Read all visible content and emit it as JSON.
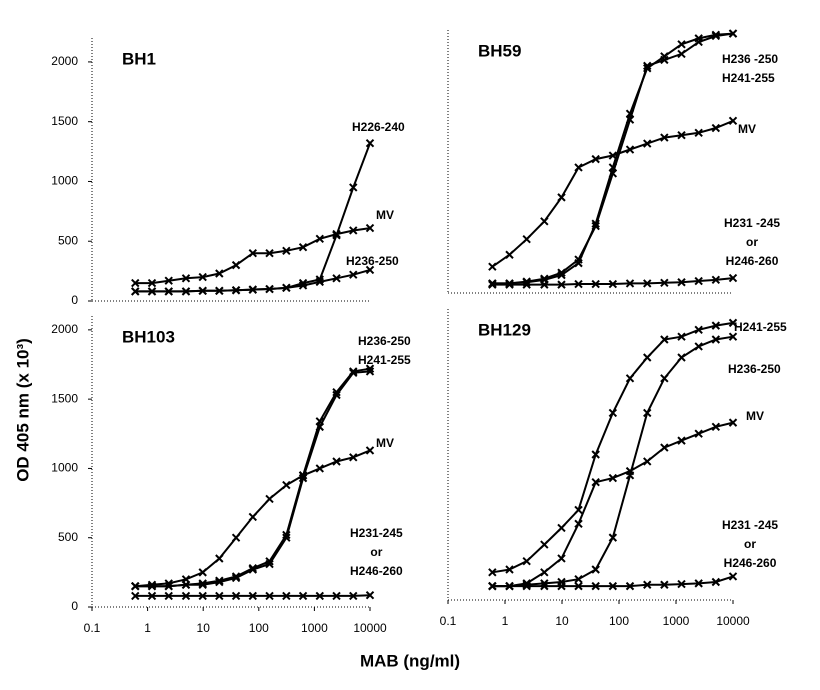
{
  "y_label": "OD 405 nm (x 10³)",
  "x_label": "MAB (ng/ml)",
  "chart_data": [
    {
      "type": "line",
      "title": "BH1",
      "log_x": true,
      "color": "#000000",
      "x": [
        0.6,
        1.2,
        2.4,
        4.9,
        9.8,
        19.5,
        39,
        78,
        156,
        313,
        625,
        1250,
        2500,
        5000,
        10000
      ],
      "xlim": [
        0.1,
        10000
      ],
      "ylim": [
        0,
        2200
      ],
      "yticks": [
        0,
        500,
        1000,
        1500,
        2000
      ],
      "series": [
        {
          "name": "H226-240",
          "color": "#000000",
          "values": [
            80,
            80,
            80,
            80,
            85,
            85,
            90,
            95,
            100,
            110,
            150,
            180,
            550,
            950,
            1320
          ]
        },
        {
          "name": "MV",
          "color": "#000000",
          "values": [
            150,
            150,
            170,
            190,
            200,
            230,
            300,
            400,
            400,
            420,
            450,
            520,
            560,
            590,
            610
          ]
        },
        {
          "name": "H236-250",
          "color": "#000000",
          "values": [
            80,
            80,
            80,
            80,
            85,
            85,
            90,
            95,
            100,
            110,
            130,
            160,
            190,
            220,
            260
          ]
        }
      ]
    },
    {
      "type": "line",
      "title": "BH59",
      "log_x": true,
      "color": "#000000",
      "x": [
        0.6,
        1.2,
        2.4,
        4.9,
        9.8,
        19.5,
        39,
        78,
        156,
        313,
        625,
        1250,
        2500,
        5000,
        10000
      ],
      "xlim": [
        0.1,
        10000
      ],
      "ylim": [
        0,
        2200
      ],
      "series": [
        {
          "name": "H236 -250",
          "color": "#000000",
          "values": [
            80,
            80,
            90,
            110,
            150,
            250,
            580,
            1050,
            1500,
            1880,
            1980,
            2080,
            2130,
            2160,
            2170
          ]
        },
        {
          "name": "H241-255",
          "color": "#000000",
          "values": [
            80,
            80,
            95,
            120,
            170,
            280,
            560,
            1000,
            1450,
            1900,
            1950,
            2000,
            2100,
            2150,
            2170
          ]
        },
        {
          "name": "MV",
          "color": "#000000",
          "values": [
            220,
            320,
            450,
            600,
            800,
            1050,
            1120,
            1150,
            1200,
            1250,
            1300,
            1320,
            1340,
            1380,
            1440
          ]
        },
        {
          "name": "H231 -245\nor\nH246-260",
          "color": "#000000",
          "values": [
            70,
            70,
            70,
            70,
            70,
            75,
            75,
            75,
            80,
            80,
            85,
            90,
            100,
            110,
            125
          ]
        }
      ]
    },
    {
      "type": "line",
      "title": "BH103",
      "log_x": true,
      "color": "#000000",
      "x": [
        0.6,
        1.2,
        2.4,
        4.9,
        9.8,
        19.5,
        39,
        78,
        156,
        313,
        625,
        1250,
        2500,
        5000,
        10000
      ],
      "xlim": [
        0.1,
        10000
      ],
      "ylim": [
        0,
        2100
      ],
      "yticks": [
        0,
        500,
        1000,
        1500,
        2000
      ],
      "xticks": [
        0.1,
        1,
        10,
        100,
        1000,
        10000
      ],
      "series": [
        {
          "name": "H236-250",
          "color": "#000000",
          "values": [
            150,
            150,
            150,
            160,
            170,
            190,
            220,
            280,
            330,
            520,
            950,
            1340,
            1550,
            1700,
            1720
          ]
        },
        {
          "name": "H241-255",
          "color": "#000000",
          "values": [
            150,
            150,
            150,
            160,
            160,
            180,
            210,
            270,
            310,
            500,
            930,
            1300,
            1530,
            1690,
            1700
          ]
        },
        {
          "name": "MV",
          "color": "#000000",
          "values": [
            150,
            160,
            170,
            200,
            250,
            350,
            500,
            650,
            780,
            880,
            950,
            1000,
            1050,
            1080,
            1130
          ]
        },
        {
          "name": "H231-245\nor\nH246-260",
          "color": "#000000",
          "values": [
            80,
            80,
            80,
            80,
            80,
            80,
            80,
            80,
            80,
            80,
            80,
            80,
            80,
            80,
            85
          ]
        }
      ]
    },
    {
      "type": "line",
      "title": "BH129",
      "log_x": true,
      "color": "#000000",
      "x": [
        0.6,
        1.2,
        2.4,
        4.9,
        9.8,
        19.5,
        39,
        78,
        156,
        313,
        625,
        1250,
        2500,
        5000,
        10000
      ],
      "xlim": [
        0.1,
        10000
      ],
      "ylim": [
        0,
        2100
      ],
      "xticks": [
        0.1,
        1,
        10,
        100,
        1000,
        10000
      ],
      "series": [
        {
          "name": "H241-255",
          "color": "#000000",
          "values": [
            200,
            220,
            280,
            400,
            520,
            650,
            1050,
            1350,
            1600,
            1750,
            1880,
            1900,
            1950,
            1980,
            2000
          ]
        },
        {
          "name": "H236-250",
          "color": "#000000",
          "values": [
            100,
            100,
            110,
            120,
            130,
            150,
            220,
            450,
            900,
            1350,
            1600,
            1750,
            1830,
            1880,
            1900
          ]
        },
        {
          "name": "MV",
          "color": "#000000",
          "values": [
            100,
            100,
            120,
            200,
            300,
            550,
            850,
            880,
            930,
            1000,
            1100,
            1150,
            1200,
            1250,
            1280
          ]
        },
        {
          "name": "H231 -245\nor\nH246-260",
          "color": "#000000",
          "values": [
            100,
            100,
            100,
            100,
            100,
            100,
            100,
            100,
            100,
            110,
            110,
            115,
            120,
            130,
            170
          ]
        }
      ]
    }
  ]
}
